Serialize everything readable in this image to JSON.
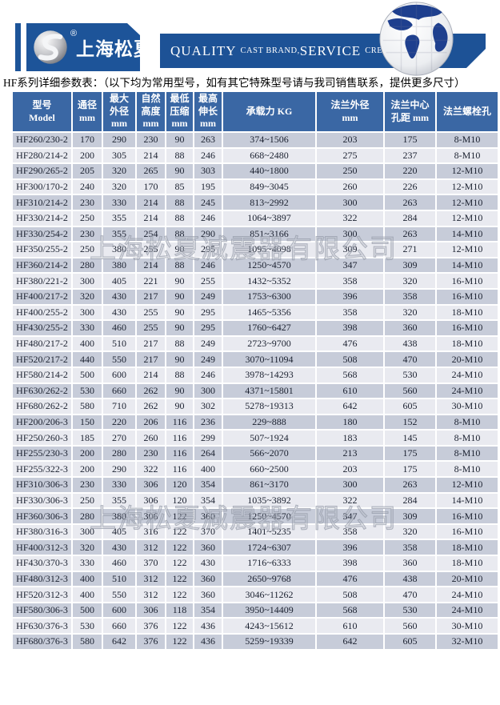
{
  "brand": {
    "logo_symbol": "S",
    "registered": "®",
    "name_cn": "上海松夏",
    "slogan": {
      "quality": "QUALITY",
      "cast_brand": "CAST BRAND,",
      "service": "SERVICE",
      "creat_value": "CREAT VALUE"
    }
  },
  "page_title": "HF系列详细参数表：（以下均为常用型号，如有其它特殊型号请与我司销售联系，提供更多尺寸）",
  "watermark_text": "上海松夏减震器有限公司",
  "colors": {
    "brand_blue": "#1d5499",
    "banner_blue": "#1d5296",
    "table_header_blue": "#3a67a4",
    "row_odd": "#c7ccd9",
    "row_even": "#e9eaf0",
    "globe_continent_blue": "#1e3f8e"
  },
  "table": {
    "columns": [
      "型号\nModel",
      "通径\nmm",
      "最大\n外径\nmm",
      "自然\n高度\nmm",
      "最低\n压缩\nmm",
      "最高\n伸长\nmm",
      "承载力 KG",
      "法兰外径\nmm",
      "法兰中心\n孔距 mm",
      "法兰螺栓孔"
    ],
    "rows": [
      [
        "HF260/230-2",
        "170",
        "290",
        "230",
        "90",
        "263",
        "374~1506",
        "203",
        "175",
        "8-M10"
      ],
      [
        "HF280/214-2",
        "200",
        "305",
        "214",
        "88",
        "246",
        "668~2480",
        "275",
        "237",
        "8-M10"
      ],
      [
        "HF290/265-2",
        "205",
        "320",
        "265",
        "90",
        "303",
        "440~1800",
        "250",
        "220",
        "12-M10"
      ],
      [
        "HF300/170-2",
        "240",
        "320",
        "170",
        "85",
        "195",
        "849~3045",
        "260",
        "226",
        "12-M10"
      ],
      [
        "HF310/214-2",
        "230",
        "330",
        "214",
        "88",
        "245",
        "813~2992",
        "300",
        "263",
        "12-M10"
      ],
      [
        "HF330/214-2",
        "250",
        "355",
        "214",
        "88",
        "246",
        "1064~3897",
        "322",
        "284",
        "12-M10"
      ],
      [
        "HF330/254-2",
        "230",
        "355",
        "254",
        "88",
        "290",
        "851~3166",
        "300",
        "263",
        "14-M10"
      ],
      [
        "HF350/255-2",
        "250",
        "380",
        "255",
        "90",
        "295",
        "1095~4098",
        "309",
        "271",
        "12-M10"
      ],
      [
        "HF360/214-2",
        "280",
        "380",
        "214",
        "88",
        "246",
        "1250~4570",
        "347",
        "309",
        "14-M10"
      ],
      [
        "HF380/221-2",
        "300",
        "405",
        "221",
        "90",
        "255",
        "1432~5352",
        "358",
        "320",
        "16-M10"
      ],
      [
        "HF400/217-2",
        "320",
        "430",
        "217",
        "90",
        "249",
        "1753~6300",
        "396",
        "358",
        "16-M10"
      ],
      [
        "HF400/255-2",
        "300",
        "430",
        "255",
        "90",
        "295",
        "1465~5356",
        "358",
        "320",
        "18-M10"
      ],
      [
        "HF430/255-2",
        "330",
        "460",
        "255",
        "90",
        "295",
        "1760~6427",
        "398",
        "360",
        "16-M10"
      ],
      [
        "HF480/217-2",
        "400",
        "510",
        "217",
        "88",
        "249",
        "2723~9700",
        "476",
        "438",
        "18-M10"
      ],
      [
        "HF520/217-2",
        "440",
        "550",
        "217",
        "90",
        "249",
        "3070~11094",
        "508",
        "470",
        "20-M10"
      ],
      [
        "HF580/214-2",
        "500",
        "600",
        "214",
        "88",
        "246",
        "3978~14293",
        "568",
        "530",
        "24-M10"
      ],
      [
        "HF630/262-2",
        "530",
        "660",
        "262",
        "90",
        "300",
        "4371~15801",
        "610",
        "560",
        "24-M10"
      ],
      [
        "HF680/262-2",
        "580",
        "710",
        "262",
        "90",
        "302",
        "5278~19313",
        "642",
        "605",
        "30-M10"
      ],
      [
        "HF200/206-3",
        "150",
        "220",
        "206",
        "116",
        "236",
        "229~888",
        "180",
        "152",
        "8-M10"
      ],
      [
        "HF250/260-3",
        "185",
        "270",
        "260",
        "116",
        "299",
        "507~1924",
        "183",
        "145",
        "8-M10"
      ],
      [
        "HF255/230-3",
        "200",
        "280",
        "230",
        "116",
        "264",
        "566~2070",
        "213",
        "175",
        "8-M10"
      ],
      [
        "HF255/322-3",
        "200",
        "290",
        "322",
        "116",
        "400",
        "660~2500",
        "203",
        "175",
        "8-M10"
      ],
      [
        "HF310/306-3",
        "230",
        "330",
        "306",
        "120",
        "354",
        "861~3170",
        "300",
        "263",
        "12-M10"
      ],
      [
        "HF330/306-3",
        "250",
        "355",
        "306",
        "120",
        "354",
        "1035~3892",
        "322",
        "284",
        "14-M10"
      ],
      [
        "HF360/306-3",
        "280",
        "380",
        "306",
        "122",
        "360",
        "1250~4570",
        "347",
        "309",
        "16-M10"
      ],
      [
        "HF380/316-3",
        "300",
        "405",
        "316",
        "122",
        "370",
        "1401~5235",
        "358",
        "320",
        "16-M10"
      ],
      [
        "HF400/312-3",
        "320",
        "430",
        "312",
        "122",
        "360",
        "1724~6307",
        "396",
        "358",
        "18-M10"
      ],
      [
        "HF430/370-3",
        "330",
        "460",
        "370",
        "122",
        "430",
        "1716~6333",
        "398",
        "360",
        "18-M10"
      ],
      [
        "HF480/312-3",
        "400",
        "510",
        "312",
        "122",
        "360",
        "2650~9768",
        "476",
        "438",
        "20-M10"
      ],
      [
        "HF520/312-3",
        "400",
        "550",
        "312",
        "122",
        "360",
        "3046~11262",
        "508",
        "470",
        "24-M10"
      ],
      [
        "HF580/306-3",
        "500",
        "600",
        "306",
        "118",
        "354",
        "3950~14409",
        "568",
        "530",
        "24-M10"
      ],
      [
        "HF630/376-3",
        "530",
        "660",
        "376",
        "122",
        "436",
        "4243~15612",
        "610",
        "560",
        "30-M10"
      ],
      [
        "HF680/376-3",
        "580",
        "642",
        "376",
        "122",
        "436",
        "5259~19339",
        "642",
        "605",
        "32-M10"
      ]
    ]
  }
}
